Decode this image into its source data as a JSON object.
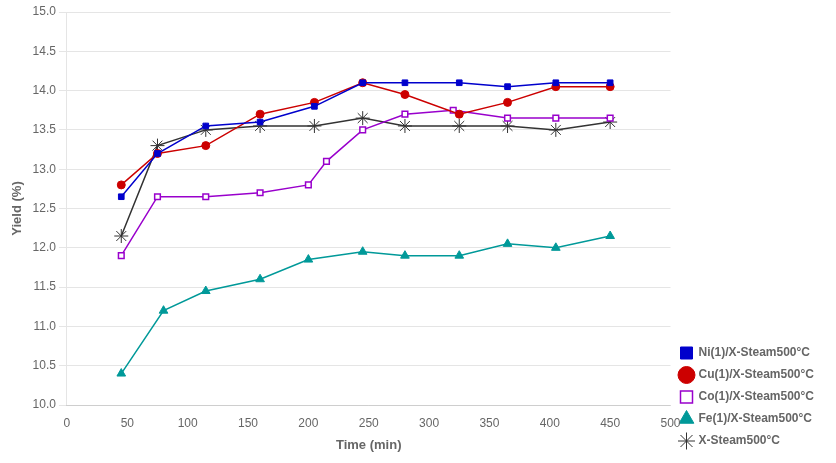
{
  "chart_data": {
    "type": "line",
    "xlabel": "Time (min)",
    "ylabel": "Yield (%)",
    "xlim": [
      0,
      500
    ],
    "ylim": [
      10,
      15
    ],
    "xticks": [
      0,
      50,
      100,
      150,
      200,
      250,
      300,
      350,
      400,
      450,
      500
    ],
    "yticks": [
      {
        "value": 10,
        "label": "10.0"
      },
      10.5,
      {
        "value": 11,
        "label": "11.0"
      },
      11.5,
      {
        "value": 12,
        "label": "12.0"
      },
      12.5,
      {
        "value": 13,
        "label": "13.0"
      },
      13.5,
      {
        "value": 14,
        "label": "14.0"
      },
      14.5,
      {
        "value": 15,
        "label": "15.0"
      }
    ],
    "grid": "y",
    "legend": "lower right",
    "series": [
      {
        "name": "Ni(1)/X-Steam500°C",
        "color": "#0000CC",
        "marker": "square",
        "line_style": "solid",
        "x": [
          45,
          75,
          115,
          160,
          205,
          245,
          280,
          325,
          365,
          405,
          450
        ],
        "values": [
          12.65,
          13.2,
          13.55,
          13.6,
          13.8,
          14.1,
          14.1,
          14.1,
          14.05,
          14.1,
          14.1
        ]
      },
      {
        "name": "Cu(1)/X-Steam500°C",
        "color": "#CC0000",
        "marker": "circle",
        "line_style": "solid",
        "x": [
          45,
          75,
          115,
          160,
          205,
          245,
          280,
          325,
          365,
          405,
          450
        ],
        "values": [
          12.8,
          13.2,
          13.3,
          13.7,
          13.85,
          14.1,
          13.95,
          13.7,
          13.85,
          14.05,
          14.05
        ]
      },
      {
        "name": "Co(1)/X-Steam500°C",
        "color": "#9900CC",
        "marker": "open_square",
        "line_style": "solid",
        "x": [
          45,
          75,
          115,
          160,
          200,
          215,
          245,
          280,
          320,
          365,
          405,
          450
        ],
        "values": [
          11.9,
          12.65,
          12.65,
          12.7,
          12.8,
          13.1,
          13.5,
          13.7,
          13.75,
          13.65,
          13.65,
          13.65
        ]
      },
      {
        "name": "Fe(1)/X-Steam500°C",
        "color": "#009999",
        "marker": "triangle",
        "line_style": "solid",
        "x": [
          45,
          80,
          115,
          160,
          200,
          245,
          280,
          325,
          365,
          405,
          450
        ],
        "values": [
          10.4,
          11.2,
          11.45,
          11.6,
          11.85,
          11.95,
          11.9,
          11.9,
          12.05,
          12.0,
          12.15
        ]
      },
      {
        "name": "X-Steam500°C",
        "color": "#333333",
        "marker": "star",
        "line_style": "solid",
        "x": [
          45,
          75,
          115,
          160,
          205,
          245,
          280,
          325,
          365,
          405,
          450
        ],
        "values": [
          12.15,
          13.3,
          13.5,
          13.55,
          13.55,
          13.65,
          13.55,
          13.55,
          13.55,
          13.5,
          13.6
        ]
      }
    ]
  }
}
